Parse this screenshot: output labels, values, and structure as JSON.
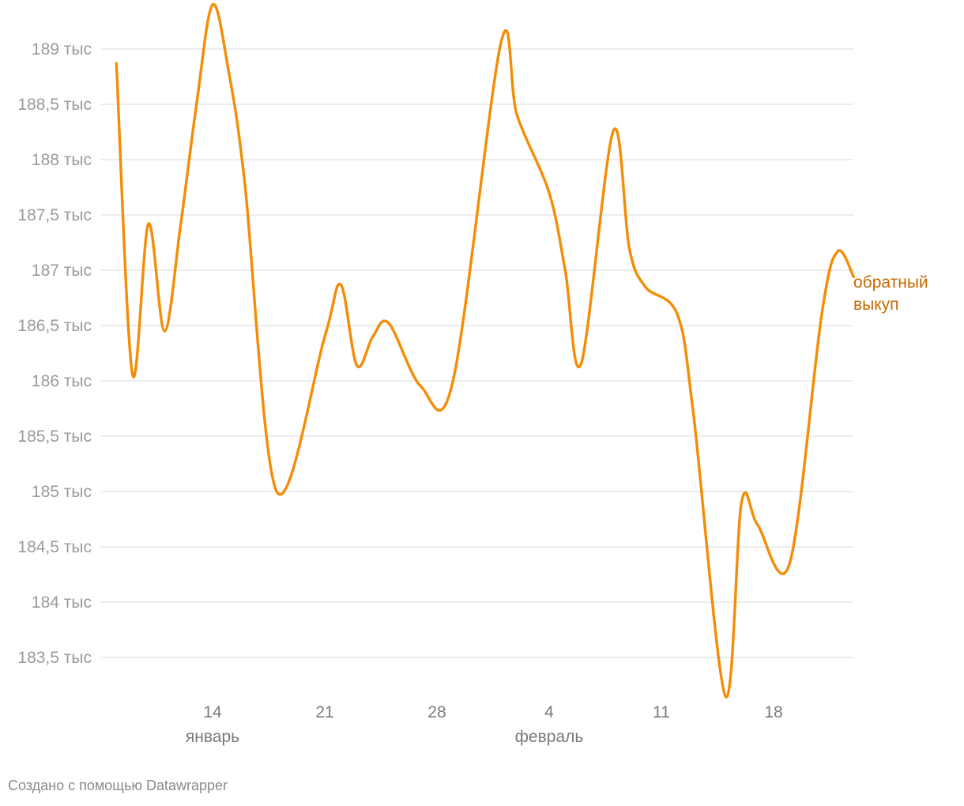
{
  "chart_data": {
    "type": "line",
    "title": "",
    "xlabel": "",
    "ylabel": "",
    "ylim": [
      183200,
      189400
    ],
    "y_ticks": [
      {
        "value": 189000,
        "label": "189 тыс"
      },
      {
        "value": 188500,
        "label": "188,5 тыс"
      },
      {
        "value": 188000,
        "label": "188 тыс"
      },
      {
        "value": 187500,
        "label": "187,5 тыс"
      },
      {
        "value": 187000,
        "label": "187 тыс"
      },
      {
        "value": 186500,
        "label": "186,5 тыс"
      },
      {
        "value": 186000,
        "label": "186 тыс"
      },
      {
        "value": 185500,
        "label": "185,5 тыс"
      },
      {
        "value": 185000,
        "label": "185 тыс"
      },
      {
        "value": 184500,
        "label": "184,5 тыс"
      },
      {
        "value": 184000,
        "label": "184 тыс"
      },
      {
        "value": 183500,
        "label": "183,5 тыс"
      }
    ],
    "x_ticks": [
      {
        "date": "2021-01-14",
        "label": "14",
        "month": "январь"
      },
      {
        "date": "2021-01-21",
        "label": "21",
        "month": ""
      },
      {
        "date": "2021-01-28",
        "label": "28",
        "month": ""
      },
      {
        "date": "2021-02-04",
        "label": "4",
        "month": "февраль"
      },
      {
        "date": "2021-02-11",
        "label": "11",
        "month": ""
      },
      {
        "date": "2021-02-18",
        "label": "18",
        "month": ""
      }
    ],
    "grid": true,
    "series": [
      {
        "name": "обратный выкуп",
        "color": "#f48c06",
        "points": [
          {
            "x": "2021-01-08",
            "y": 188870
          },
          {
            "x": "2021-01-09",
            "y": 186060
          },
          {
            "x": "2021-01-10",
            "y": 187420
          },
          {
            "x": "2021-01-11",
            "y": 186450
          },
          {
            "x": "2021-01-12",
            "y": 187400
          },
          {
            "x": "2021-01-13",
            "y": 188500
          },
          {
            "x": "2021-01-14",
            "y": 189400
          },
          {
            "x": "2021-01-15",
            "y": 188800
          },
          {
            "x": "2021-01-16",
            "y": 187800
          },
          {
            "x": "2021-01-18",
            "y": 185000
          },
          {
            "x": "2021-01-21",
            "y": 186400
          },
          {
            "x": "2021-01-22",
            "y": 186870
          },
          {
            "x": "2021-01-23",
            "y": 186140
          },
          {
            "x": "2021-01-24",
            "y": 186400
          },
          {
            "x": "2021-01-25",
            "y": 186520
          },
          {
            "x": "2021-01-27",
            "y": 185950
          },
          {
            "x": "2021-01-29",
            "y": 186000
          },
          {
            "x": "2021-02-01",
            "y": 189060
          },
          {
            "x": "2021-02-02",
            "y": 188400
          },
          {
            "x": "2021-02-04",
            "y": 187700
          },
          {
            "x": "2021-02-05",
            "y": 187000
          },
          {
            "x": "2021-02-06",
            "y": 186160
          },
          {
            "x": "2021-02-08",
            "y": 188260
          },
          {
            "x": "2021-02-09",
            "y": 187200
          },
          {
            "x": "2021-02-10",
            "y": 186850
          },
          {
            "x": "2021-02-12",
            "y": 186600
          },
          {
            "x": "2021-02-13",
            "y": 185700
          },
          {
            "x": "2021-02-15",
            "y": 183150
          },
          {
            "x": "2021-02-16",
            "y": 184900
          },
          {
            "x": "2021-02-17",
            "y": 184700
          },
          {
            "x": "2021-02-19",
            "y": 184350
          },
          {
            "x": "2021-02-21",
            "y": 186600
          },
          {
            "x": "2021-02-22",
            "y": 187170
          },
          {
            "x": "2021-02-23",
            "y": 186940
          }
        ]
      }
    ],
    "series_label_lines": [
      "обратный",
      "выкуп"
    ]
  },
  "credit": "Создано с помощью Datawrapper"
}
